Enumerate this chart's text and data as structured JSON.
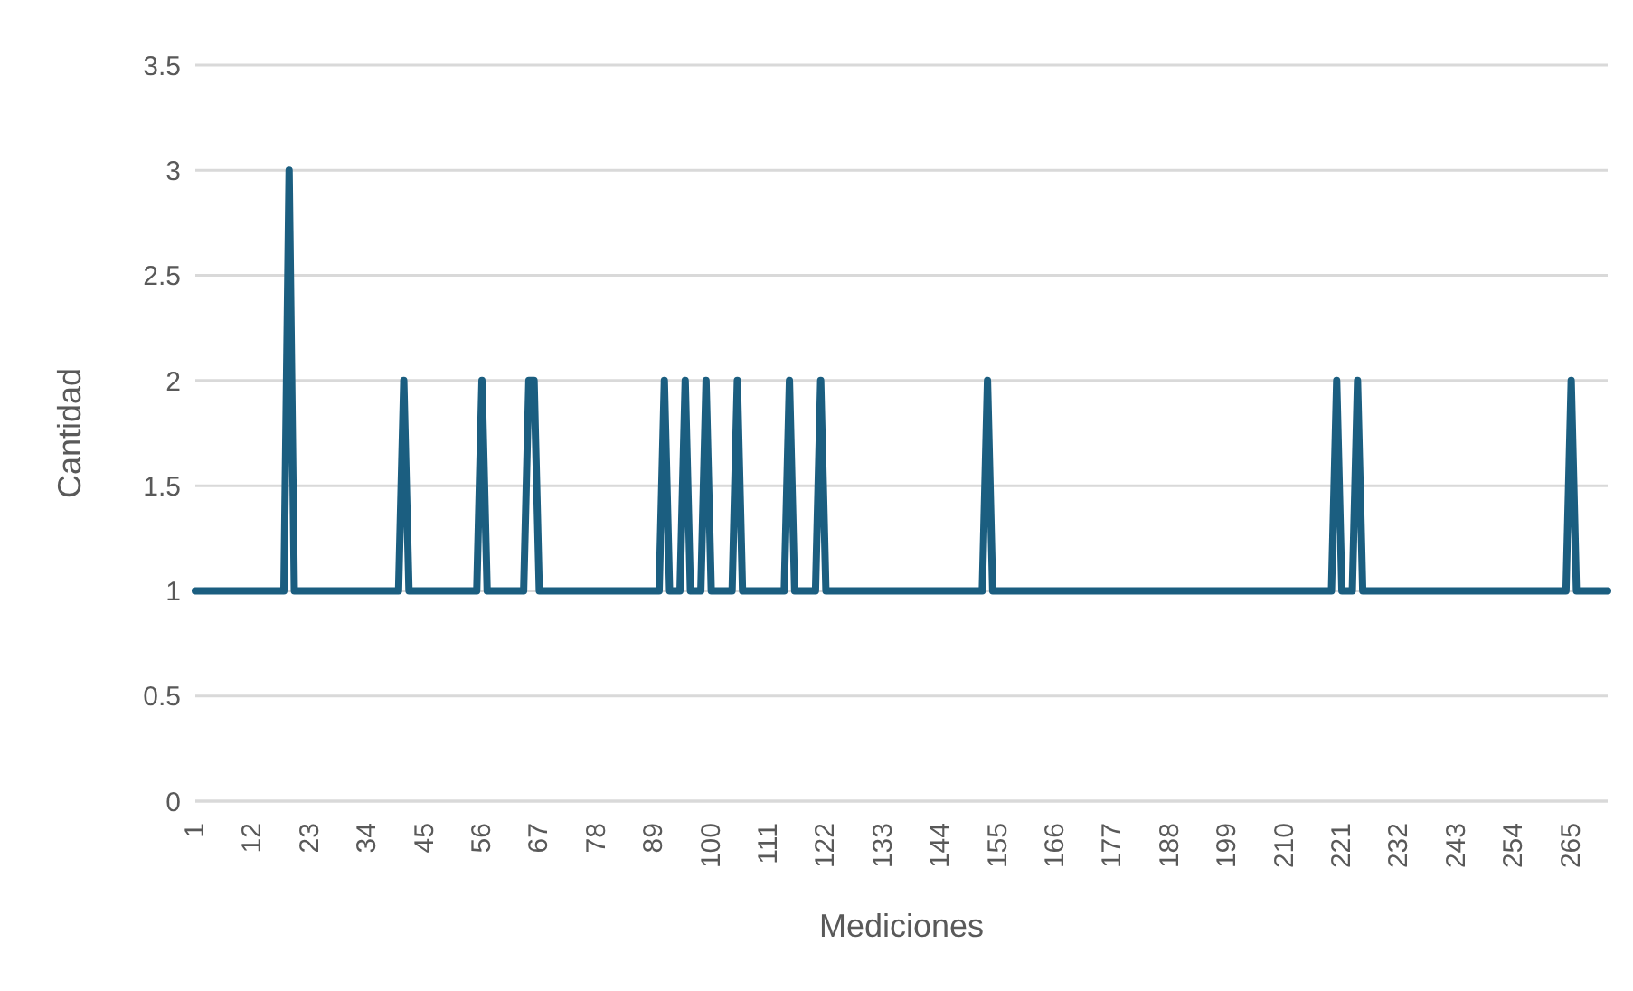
{
  "chart_data": {
    "type": "line",
    "xlabel": "Mediciones",
    "ylabel": "Cantidad",
    "categories": [
      "1",
      null,
      null,
      null,
      null,
      null,
      null,
      null,
      null,
      null,
      null,
      "12",
      null,
      null,
      null,
      null,
      null,
      null,
      null,
      null,
      null,
      null,
      "23",
      null,
      null,
      null,
      null,
      null,
      null,
      null,
      null,
      null,
      null,
      "34",
      null,
      null,
      null,
      null,
      null,
      null,
      null,
      null,
      null,
      null,
      "45",
      null,
      null,
      null,
      null,
      null,
      null,
      null,
      null,
      null,
      null,
      "56",
      null,
      null,
      null,
      null,
      null,
      null,
      null,
      null,
      null,
      null,
      "67",
      null,
      null,
      null,
      null,
      null,
      null,
      null,
      null,
      null,
      null,
      "78",
      null,
      null,
      null,
      null,
      null,
      null,
      null,
      null,
      null,
      null,
      "89",
      null,
      null,
      null,
      null,
      null,
      null,
      null,
      null,
      null,
      null,
      "100",
      null,
      null,
      null,
      null,
      null,
      null,
      null,
      null,
      null,
      null,
      "111",
      null,
      null,
      null,
      null,
      null,
      null,
      null,
      null,
      null,
      null,
      "122",
      null,
      null,
      null,
      null,
      null,
      null,
      null,
      null,
      null,
      null,
      "133",
      null,
      null,
      null,
      null,
      null,
      null,
      null,
      null,
      null,
      null,
      "144",
      null,
      null,
      null,
      null,
      null,
      null,
      null,
      null,
      null,
      null,
      "155",
      null,
      null,
      null,
      null,
      null,
      null,
      null,
      null,
      null,
      null,
      "166",
      null,
      null,
      null,
      null,
      null,
      null,
      null,
      null,
      null,
      null,
      "177",
      null,
      null,
      null,
      null,
      null,
      null,
      null,
      null,
      null,
      null,
      "188",
      null,
      null,
      null,
      null,
      null,
      null,
      null,
      null,
      null,
      null,
      "199",
      null,
      null,
      null,
      null,
      null,
      null,
      null,
      null,
      null,
      null,
      "210",
      null,
      null,
      null,
      null,
      null,
      null,
      null,
      null,
      null,
      null,
      "221",
      null,
      null,
      null,
      null,
      null,
      null,
      null,
      null,
      null,
      null,
      "232",
      null,
      null,
      null,
      null,
      null,
      null,
      null,
      null,
      null,
      null,
      "243",
      null,
      null,
      null,
      null,
      null,
      null,
      null,
      null,
      null,
      null,
      "254",
      null,
      null,
      null,
      null,
      null,
      null,
      null,
      null,
      null,
      null,
      "265",
      null,
      null,
      null,
      null,
      null,
      null,
      null
    ],
    "series": [
      {
        "color": "#1b5e80",
        "values": [
          1,
          1,
          1,
          1,
          1,
          1,
          1,
          1,
          1,
          1,
          1,
          1,
          1,
          1,
          1,
          1,
          1,
          1,
          3,
          1,
          1,
          1,
          1,
          1,
          1,
          1,
          1,
          1,
          1,
          1,
          1,
          1,
          1,
          1,
          1,
          1,
          1,
          1,
          1,
          1,
          2,
          1,
          1,
          1,
          1,
          1,
          1,
          1,
          1,
          1,
          1,
          1,
          1,
          1,
          1,
          2,
          1,
          1,
          1,
          1,
          1,
          1,
          1,
          1,
          2,
          2,
          1,
          1,
          1,
          1,
          1,
          1,
          1,
          1,
          1,
          1,
          1,
          1,
          1,
          1,
          1,
          1,
          1,
          1,
          1,
          1,
          1,
          1,
          1,
          1,
          2,
          1,
          1,
          1,
          2,
          1,
          1,
          1,
          2,
          1,
          1,
          1,
          1,
          1,
          2,
          1,
          1,
          1,
          1,
          1,
          1,
          1,
          1,
          1,
          2,
          1,
          1,
          1,
          1,
          1,
          2,
          1,
          1,
          1,
          1,
          1,
          1,
          1,
          1,
          1,
          1,
          1,
          1,
          1,
          1,
          1,
          1,
          1,
          1,
          1,
          1,
          1,
          1,
          1,
          1,
          1,
          1,
          1,
          1,
          1,
          1,
          1,
          2,
          1,
          1,
          1,
          1,
          1,
          1,
          1,
          1,
          1,
          1,
          1,
          1,
          1,
          1,
          1,
          1,
          1,
          1,
          1,
          1,
          1,
          1,
          1,
          1,
          1,
          1,
          1,
          1,
          1,
          1,
          1,
          1,
          1,
          1,
          1,
          1,
          1,
          1,
          1,
          1,
          1,
          1,
          1,
          1,
          1,
          1,
          1,
          1,
          1,
          1,
          1,
          1,
          1,
          1,
          1,
          1,
          1,
          1,
          1,
          1,
          1,
          1,
          1,
          1,
          1,
          1,
          2,
          1,
          1,
          1,
          2,
          1,
          1,
          1,
          1,
          1,
          1,
          1,
          1,
          1,
          1,
          1,
          1,
          1,
          1,
          1,
          1,
          1,
          1,
          1,
          1,
          1,
          1,
          1,
          1,
          1,
          1,
          1,
          1,
          1,
          1,
          1,
          1,
          1,
          1,
          1,
          1,
          1,
          1,
          1,
          1,
          2,
          1,
          1,
          1,
          1,
          1,
          1,
          1
        ]
      }
    ],
    "ylim": [
      0,
      3.5
    ],
    "yticks": [
      0,
      0.5,
      1,
      1.5,
      2,
      2.5,
      3,
      3.5
    ],
    "grid": "y",
    "legend": false,
    "marker": "none",
    "line_style": "solid"
  }
}
